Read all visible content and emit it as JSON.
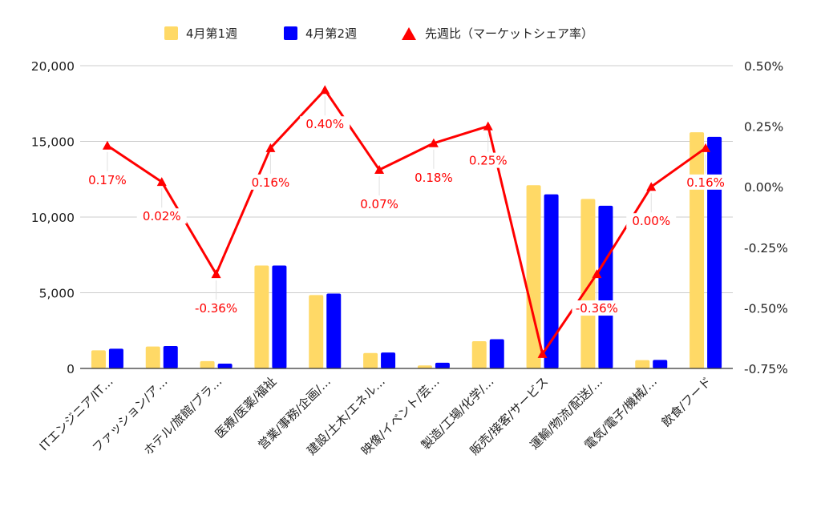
{
  "chart_data": {
    "type": "bar",
    "categories": [
      "ITエンジニア/IT…",
      "ファッション/ア…",
      "ホテル/旅館/ブラ…",
      "医療/医薬/福祉",
      "営業/事務/企画/…",
      "建設/土木/エネル…",
      "映像/イベント/芸…",
      "製造/工場/化学/…",
      "販売/接客/サービス",
      "運輸/物流/配送/…",
      "電気/電子/機械/…",
      "飲食/フード"
    ],
    "series": [
      {
        "name": "4月第1週",
        "type": "bar",
        "axis": "left",
        "color": "#ffd966",
        "values": [
          1200,
          1450,
          480,
          6800,
          4850,
          1020,
          200,
          1800,
          12100,
          11200,
          550,
          15600
        ]
      },
      {
        "name": "4月第2週",
        "type": "bar",
        "axis": "left",
        "color": "#0000ff",
        "values": [
          1300,
          1480,
          320,
          6800,
          4950,
          1050,
          380,
          1930,
          11500,
          10750,
          560,
          15300
        ]
      },
      {
        "name": "先週比（マーケットシェア率）",
        "type": "line",
        "axis": "right",
        "color": "#ff0000",
        "marker": "triangle",
        "values": [
          0.17,
          0.02,
          -0.36,
          0.16,
          0.4,
          0.07,
          0.18,
          0.25,
          -0.69,
          -0.36,
          0.0,
          0.16
        ]
      }
    ],
    "point_labels": [
      "0.17%",
      "0.02%",
      "-0.36%",
      "0.16%",
      "0.40%",
      "0.07%",
      "0.18%",
      "0.25%",
      "",
      "-0.36%",
      "0.00%",
      "0.16%"
    ],
    "y_left": {
      "min": 0,
      "max": 20000,
      "ticks": [
        "0",
        "5,000",
        "10,000",
        "15,000",
        "20,000"
      ],
      "tick_values": [
        0,
        5000,
        10000,
        15000,
        20000
      ]
    },
    "y_right": {
      "min": -0.75,
      "max": 0.5,
      "ticks": [
        "-0.75%",
        "-0.50%",
        "-0.25%",
        "0.00%",
        "0.25%",
        "0.50%"
      ],
      "tick_values": [
        -0.75,
        -0.5,
        -0.25,
        0,
        0.25,
        0.5
      ]
    },
    "grid": true,
    "legend_position": "top"
  }
}
